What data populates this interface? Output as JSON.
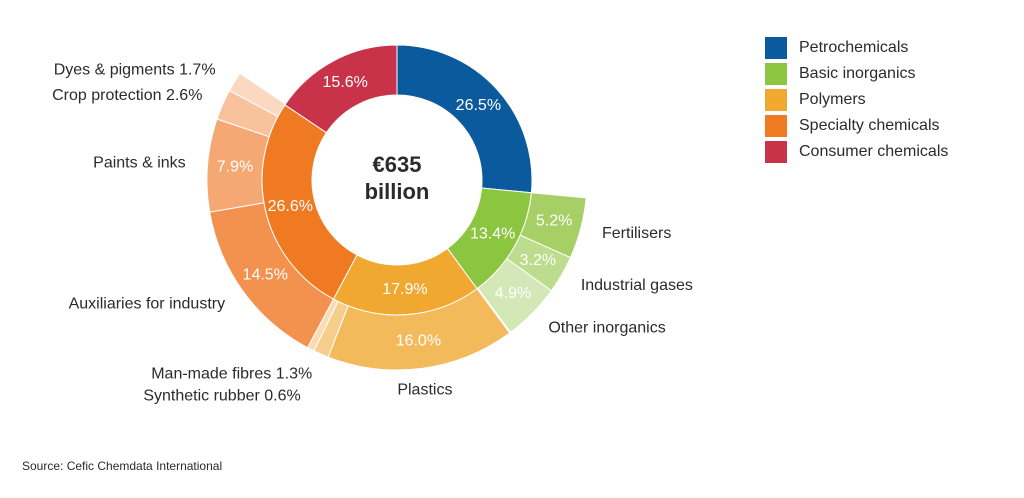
{
  "chart_data": {
    "type": "sunburst",
    "center_text": [
      "€635",
      "billion"
    ],
    "source": "Source: Cefic Chemdata International",
    "legend_position": "top-right",
    "series": [
      {
        "name": "Petrochemicals",
        "color": "#0b5a9e",
        "value": 26.5,
        "value_label": "26.5%",
        "children": []
      },
      {
        "name": "Basic inorganics",
        "color": "#8cc540",
        "value": 13.4,
        "value_label": "13.4%",
        "children": [
          {
            "name": "Fertilisers",
            "color": "#a6d066",
            "value": 5.2,
            "value_label": "5.2%"
          },
          {
            "name": "Industrial gases",
            "color": "#bcdc8e",
            "value": 3.2,
            "value_label": "3.2%"
          },
          {
            "name": "Other inorganics",
            "color": "#d3e8b6",
            "value": 4.9,
            "value_label": "4.9%"
          }
        ]
      },
      {
        "name": "Polymers",
        "color": "#f0a830",
        "value": 17.9,
        "value_label": "17.9%",
        "children": [
          {
            "name": "Plastics",
            "color": "#f3ba5c",
            "value": 16.0,
            "value_label": "16.0%"
          },
          {
            "name": "Man-made fibres",
            "color": "#f7cd8c",
            "value": 1.3,
            "value_label": "1.3%"
          },
          {
            "name": "Synthetic rubber",
            "color": "#fadcb2",
            "value": 0.6,
            "value_label": "0.6%"
          }
        ]
      },
      {
        "name": "Specialty chemicals",
        "color": "#f07a22",
        "value": 26.6,
        "value_label": "26.6%",
        "children": [
          {
            "name": "Auxiliaries for industry",
            "color": "#f3914f",
            "value": 14.5,
            "value_label": "14.5%"
          },
          {
            "name": "Paints & inks",
            "color": "#f5a873",
            "value": 7.9,
            "value_label": "7.9%"
          },
          {
            "name": "Crop protection",
            "color": "#f8c29d",
            "value": 2.6,
            "value_label": "2.6%"
          },
          {
            "name": "Dyes & pigments",
            "color": "#fbd8c0",
            "value": 1.7,
            "value_label": "1.7%"
          }
        ]
      },
      {
        "name": "Consumer chemicals",
        "color": "#c8334a",
        "value": 15.6,
        "value_label": "15.6%",
        "children": []
      }
    ]
  }
}
